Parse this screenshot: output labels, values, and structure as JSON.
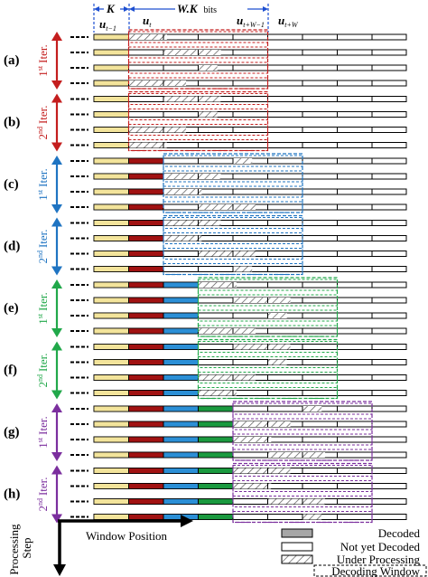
{
  "header": {
    "k_label": "K",
    "wk_label": "W.K",
    "wk_unit": "bits",
    "blocks": [
      {
        "base": "u",
        "sub": "t−1"
      },
      {
        "base": "u",
        "sub": "t"
      },
      {
        "base": "u",
        "sub": "t+W−1"
      },
      {
        "base": "u",
        "sub": "t+W"
      }
    ]
  },
  "colors": {
    "yellow": "#f3e49b",
    "red": "#a11212",
    "blue": "#2b8fd6",
    "green": "#1a9a3f",
    "purple": "#6b2c91",
    "iter_red": "#c41e1e",
    "iter_blue": "#1f74c2",
    "iter_green": "#21a84a",
    "iter_purple": "#7b2f9e"
  },
  "panels": [
    {
      "label": "(a)",
      "iter": "1",
      "iter_suffix": "st",
      "iter_word": "Iter.",
      "color": "iter_red",
      "decoded_blocks": 0,
      "window_start": 1
    },
    {
      "label": "(b)",
      "iter": "2",
      "iter_suffix": "nd",
      "iter_word": "Iter.",
      "color": "iter_red",
      "decoded_blocks": 0,
      "window_start": 1
    },
    {
      "label": "(c)",
      "iter": "1",
      "iter_suffix": "st",
      "iter_word": "Iter.",
      "color": "iter_blue",
      "decoded_blocks": 1,
      "window_start": 2
    },
    {
      "label": "(d)",
      "iter": "2",
      "iter_suffix": "nd",
      "iter_word": "Iter.",
      "color": "iter_blue",
      "decoded_blocks": 1,
      "window_start": 2
    },
    {
      "label": "(e)",
      "iter": "1",
      "iter_suffix": "st",
      "iter_word": "Iter.",
      "color": "iter_green",
      "decoded_blocks": 2,
      "window_start": 3
    },
    {
      "label": "(f)",
      "iter": "2",
      "iter_suffix": "nd",
      "iter_word": "Iter.",
      "color": "iter_green",
      "decoded_blocks": 2,
      "window_start": 3
    },
    {
      "label": "(g)",
      "iter": "1",
      "iter_suffix": "st",
      "iter_word": "Iter.",
      "color": "iter_purple",
      "decoded_blocks": 3,
      "window_start": 4
    },
    {
      "label": "(h)",
      "iter": "2",
      "iter_suffix": "nd",
      "iter_word": "Iter.",
      "color": "iter_purple",
      "decoded_blocks": 3,
      "window_start": 4
    }
  ],
  "axes": {
    "vertical_line1": "Processing",
    "vertical_line2": "Step",
    "horizontal": "Window Position"
  },
  "legend": {
    "decoded": "Decoded",
    "not_yet": "Not yet Decoded",
    "under": "Under Processing",
    "window": "Decoding Window"
  }
}
